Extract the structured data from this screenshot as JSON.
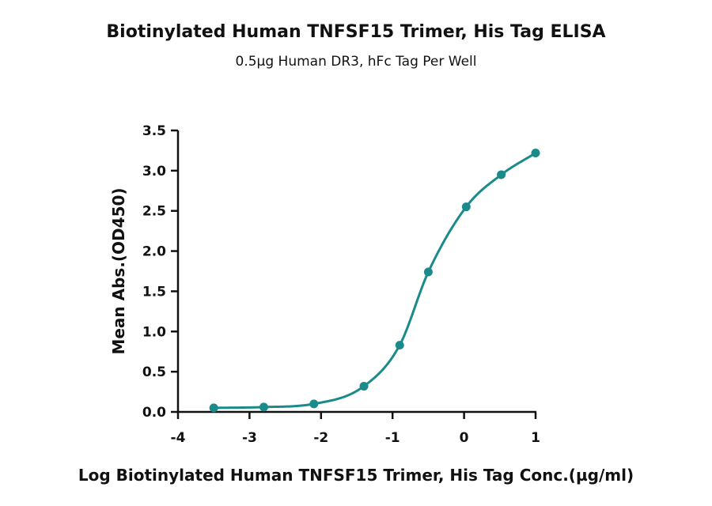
{
  "chart_data": {
    "type": "scatter",
    "title": "Biotinylated Human TNFSF15 Trimer, His Tag ELISA",
    "subtitle": "0.5µg Human DR3, hFc Tag Per Well",
    "xlabel": "Log Biotinylated Human TNFSF15 Trimer, His Tag Conc.(µg/ml)",
    "ylabel": "Mean Abs.(OD450)",
    "xlim": [
      -4,
      1
    ],
    "ylim": [
      0,
      3.5
    ],
    "xticks": [
      "-4",
      "-3",
      "-2",
      "-1",
      "0",
      "1"
    ],
    "yticks": [
      "0.0",
      "0.5",
      "1.0",
      "1.5",
      "2.0",
      "2.5",
      "3.0",
      "3.5"
    ],
    "grid": false,
    "color": "#1a8a8a",
    "series": [
      {
        "x": [
          -3.5,
          -2.8,
          -2.1,
          -1.4,
          -0.9,
          -0.5,
          0.03,
          0.52,
          1.0
        ],
        "y": [
          0.05,
          0.06,
          0.1,
          0.32,
          0.83,
          1.74,
          2.55,
          2.95,
          3.22
        ],
        "fit": "sigmoidal"
      }
    ]
  }
}
